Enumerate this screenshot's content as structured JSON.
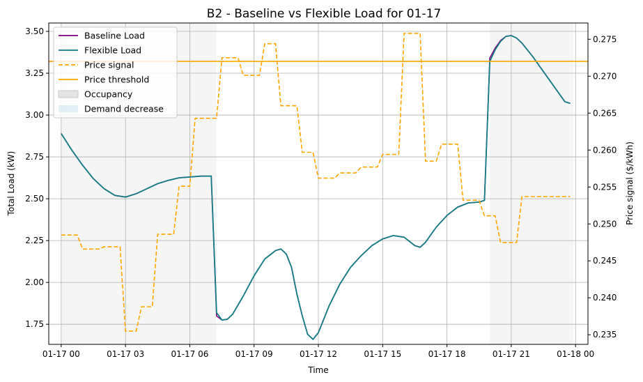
{
  "chart_data": {
    "type": "line",
    "title": "B2 - Baseline vs Flexible Load for 01-17",
    "xlabel": "Time",
    "ylabel": "Total Load (kW)",
    "ylabel_right": "Price signal ($/kWh)",
    "x_ticks": [
      "01-17 00",
      "01-17 03",
      "01-17 06",
      "01-17 09",
      "01-17 12",
      "01-17 15",
      "01-17 18",
      "01-17 21",
      "01-18 00"
    ],
    "x_range_hours": [
      -0.58,
      24.58
    ],
    "y_left_ticks": [
      "1.75",
      "2.00",
      "2.25",
      "2.50",
      "2.75",
      "3.00",
      "3.25",
      "3.50"
    ],
    "y_left_range": [
      1.63,
      3.55
    ],
    "y_right_ticks": [
      "0.235",
      "0.240",
      "0.245",
      "0.250",
      "0.255",
      "0.260",
      "0.265",
      "0.270",
      "0.275"
    ],
    "y_right_range": [
      0.2337,
      0.2772
    ],
    "grid": true,
    "legend_position": "top-left",
    "colors": {
      "baseline": "#800080",
      "flexible": "#127d84",
      "price": "#ffa500",
      "threshold": "#ffa500",
      "occupancy": "#d3d3d3",
      "demand_decrease": "#add8e6"
    },
    "legend": [
      {
        "label": "Baseline Load",
        "kind": "line",
        "color": "#800080"
      },
      {
        "label": "Flexible Load",
        "kind": "line",
        "color": "#127d84"
      },
      {
        "label": "Price signal",
        "kind": "dashed",
        "color": "#ffa500"
      },
      {
        "label": "Price threshold",
        "kind": "line",
        "color": "#ffa500"
      },
      {
        "label": "Occupancy",
        "kind": "patch",
        "color": "#d3d3d3"
      },
      {
        "label": "Demand decrease",
        "kind": "patch",
        "color": "#add8e6"
      }
    ],
    "occupancy_periods_hours": [
      [
        0,
        7.25
      ],
      [
        20,
        23.9
      ]
    ],
    "price_threshold": 0.272,
    "price_signal": {
      "x_hours": [
        0,
        0.75,
        1.0,
        1.75,
        2.0,
        2.75,
        3.0,
        3.5,
        3.75,
        4.25,
        4.5,
        5.25,
        5.5,
        6.0,
        6.25,
        6.75,
        7.0,
        7.25,
        7.5,
        8.25,
        8.5,
        9.25,
        9.5,
        10.0,
        10.25,
        11.0,
        11.25,
        11.75,
        12.0,
        12.75,
        13.0,
        13.75,
        14.0,
        14.75,
        15.0,
        15.75,
        16.0,
        16.75,
        17.0,
        17.5,
        17.75,
        18.5,
        18.75,
        19.5,
        19.75,
        20.25,
        20.5,
        21.25,
        21.5,
        22.25,
        22.5,
        23.25,
        23.5,
        23.75
      ],
      "values": [
        0.2485,
        0.2485,
        0.2466,
        0.2466,
        0.2469,
        0.2469,
        0.2355,
        0.2355,
        0.2388,
        0.2388,
        0.2486,
        0.2486,
        0.2551,
        0.2551,
        0.2643,
        0.2643,
        0.2643,
        0.2643,
        0.2725,
        0.2725,
        0.2701,
        0.2701,
        0.2744,
        0.2744,
        0.266,
        0.266,
        0.2597,
        0.2597,
        0.2562,
        0.2562,
        0.2569,
        0.2569,
        0.2577,
        0.2577,
        0.2594,
        0.2594,
        0.2758,
        0.2758,
        0.2585,
        0.2585,
        0.2608,
        0.2608,
        0.2532,
        0.2532,
        0.2511,
        0.2511,
        0.2475,
        0.2475,
        0.2537,
        0.2537,
        0.2537,
        0.2537,
        0.2537,
        0.2537
      ]
    },
    "series": [
      {
        "name": "Baseline Load",
        "x_hours": [
          0,
          0.5,
          1,
          1.5,
          2,
          2.5,
          3,
          3.5,
          4,
          4.5,
          5,
          5.5,
          6,
          6.5,
          7.0,
          7.25,
          7.5,
          7.75,
          8,
          8.5,
          9,
          9.5,
          10,
          10.25,
          10.5,
          10.75,
          11,
          11.25,
          11.5,
          11.75,
          12,
          12.25,
          12.5,
          13,
          13.5,
          14,
          14.5,
          15,
          15.5,
          16,
          16.5,
          16.75,
          17,
          17.5,
          18,
          18.5,
          19,
          19.5,
          19.75,
          20,
          20.25,
          20.5,
          20.75,
          21,
          21.25,
          21.5,
          22,
          22.5,
          23,
          23.5,
          23.75
        ],
        "values": [
          2.89,
          2.79,
          2.7,
          2.62,
          2.56,
          2.52,
          2.51,
          2.53,
          2.56,
          2.59,
          2.61,
          2.625,
          2.63,
          2.635,
          2.635,
          1.8,
          1.775,
          1.78,
          1.81,
          1.92,
          2.04,
          2.14,
          2.19,
          2.2,
          2.17,
          2.09,
          1.93,
          1.8,
          1.69,
          1.66,
          1.7,
          1.78,
          1.86,
          1.99,
          2.09,
          2.16,
          2.22,
          2.26,
          2.28,
          2.27,
          2.22,
          2.21,
          2.24,
          2.33,
          2.4,
          2.45,
          2.475,
          2.48,
          2.49,
          3.34,
          3.4,
          3.445,
          3.47,
          3.475,
          3.46,
          3.43,
          3.35,
          3.26,
          3.17,
          3.08,
          3.07
        ]
      },
      {
        "name": "Flexible Load",
        "x_hours": [
          0,
          0.5,
          1,
          1.5,
          2,
          2.5,
          3,
          3.5,
          4,
          4.5,
          5,
          5.5,
          6,
          6.5,
          7.0,
          7.25,
          7.5,
          7.75,
          8,
          8.5,
          9,
          9.5,
          10,
          10.25,
          10.5,
          10.75,
          11,
          11.25,
          11.5,
          11.75,
          12,
          12.25,
          12.5,
          13,
          13.5,
          14,
          14.5,
          15,
          15.5,
          16,
          16.5,
          16.75,
          17,
          17.5,
          18,
          18.5,
          19,
          19.5,
          19.75,
          20,
          20.25,
          20.5,
          20.75,
          21,
          21.25,
          21.5,
          22,
          22.5,
          23,
          23.5,
          23.75
        ],
        "values": [
          2.89,
          2.79,
          2.7,
          2.62,
          2.56,
          2.52,
          2.51,
          2.53,
          2.56,
          2.59,
          2.61,
          2.625,
          2.63,
          2.635,
          2.635,
          1.82,
          1.775,
          1.78,
          1.81,
          1.92,
          2.04,
          2.14,
          2.19,
          2.2,
          2.17,
          2.09,
          1.93,
          1.8,
          1.69,
          1.66,
          1.7,
          1.78,
          1.86,
          1.99,
          2.09,
          2.16,
          2.22,
          2.26,
          2.28,
          2.27,
          2.22,
          2.21,
          2.24,
          2.33,
          2.4,
          2.45,
          2.475,
          2.48,
          2.49,
          3.32,
          3.39,
          3.44,
          3.47,
          3.475,
          3.46,
          3.43,
          3.35,
          3.26,
          3.17,
          3.08,
          3.07
        ]
      }
    ]
  }
}
